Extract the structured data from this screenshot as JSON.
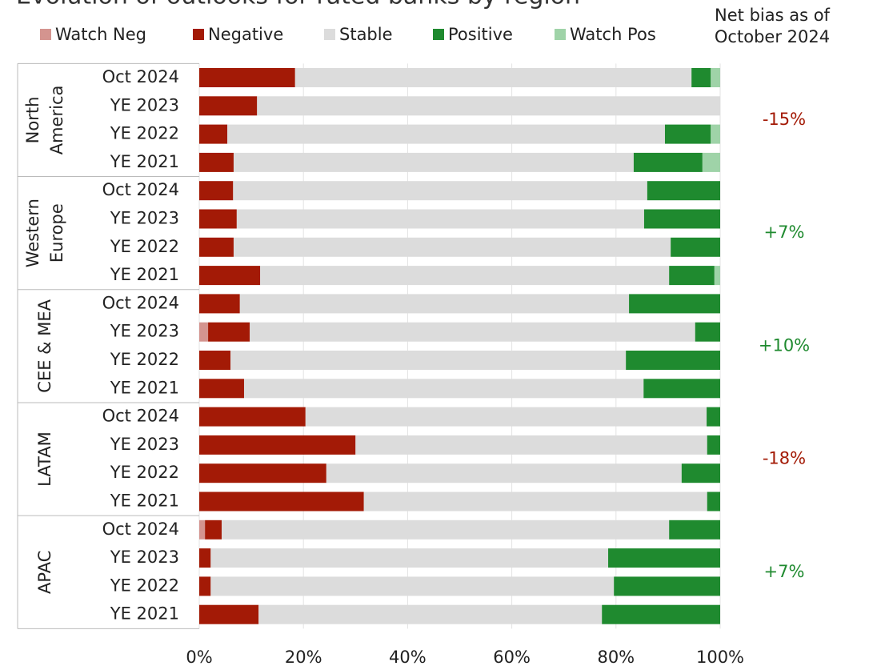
{
  "chart_data": {
    "type": "stacked-bar-horizontal",
    "title": "Evolution of outlooks for rated banks by region",
    "side_header_lines": [
      "Net bias as of",
      "October 2024"
    ],
    "groups": [
      {
        "name_lines": [
          "North",
          "America"
        ],
        "categories": [
          "Oct 2024",
          "YE 2023",
          "YE 2022",
          "YE 2021"
        ],
        "net_bias": {
          "value": -15,
          "label": "-15%"
        }
      },
      {
        "name_lines": [
          "Western",
          "Europe"
        ],
        "categories": [
          "Oct 2024",
          "YE 2023",
          "YE 2022",
          "YE 2021"
        ],
        "net_bias": {
          "value": 7,
          "label": "+7%"
        }
      },
      {
        "name_lines": [
          "CEE & MEA"
        ],
        "categories": [
          "Oct 2024",
          "YE 2023",
          "YE 2022",
          "YE 2021"
        ],
        "net_bias": {
          "value": 10,
          "label": "+10%"
        }
      },
      {
        "name_lines": [
          "LATAM"
        ],
        "categories": [
          "Oct 2024",
          "YE 2023",
          "YE 2022",
          "YE 2021"
        ],
        "net_bias": {
          "value": -18,
          "label": "-18%"
        }
      },
      {
        "name_lines": [
          "APAC"
        ],
        "categories": [
          "Oct 2024",
          "YE 2023",
          "YE 2022",
          "YE 2021"
        ],
        "net_bias": {
          "value": 7,
          "label": "+7%"
        }
      }
    ],
    "series": [
      {
        "name": "Watch Neg",
        "color": "#d4948f",
        "values": [
          0,
          0,
          0,
          0,
          0,
          0,
          0,
          0,
          0,
          1.7,
          0,
          0,
          0,
          0,
          0,
          0,
          1.1,
          0,
          0,
          0
        ]
      },
      {
        "name": "Negative",
        "color": "#a31a06",
        "values": [
          18.4,
          11.1,
          5.4,
          6.6,
          6.5,
          7.2,
          6.6,
          11.7,
          7.8,
          8.0,
          6.0,
          8.6,
          20.4,
          30.0,
          24.4,
          31.6,
          3.2,
          2.2,
          2.2,
          11.4
        ]
      },
      {
        "name": "Stable",
        "color": "#dcdcdc",
        "values": [
          76.1,
          88.9,
          84.0,
          76.8,
          79.5,
          78.2,
          83.9,
          78.5,
          74.7,
          85.5,
          75.9,
          76.7,
          77.0,
          67.5,
          68.2,
          65.9,
          85.9,
          76.3,
          77.4,
          65.9
        ]
      },
      {
        "name": "Positive",
        "color": "#1f8a2f",
        "values": [
          3.7,
          0,
          8.8,
          13.2,
          14.0,
          14.6,
          9.5,
          8.7,
          17.5,
          4.8,
          18.1,
          14.7,
          2.6,
          2.5,
          7.4,
          2.5,
          9.8,
          21.5,
          20.4,
          22.7
        ]
      },
      {
        "name": "Watch Pos",
        "color": "#9fd3a8",
        "values": [
          1.8,
          0,
          1.8,
          3.4,
          0,
          0,
          0,
          1.1,
          0,
          0,
          0,
          0,
          0,
          0,
          0,
          0,
          0,
          0,
          0,
          0
        ]
      }
    ],
    "xlim": [
      0,
      100
    ],
    "xticks": [
      {
        "value": 0,
        "label": "0%"
      },
      {
        "value": 20,
        "label": "20%"
      },
      {
        "value": 40,
        "label": "40%"
      },
      {
        "value": 60,
        "label": "60%"
      },
      {
        "value": 80,
        "label": "80%"
      },
      {
        "value": 100,
        "label": "100%"
      }
    ],
    "grid": true,
    "positive_color": "#1f8a2f",
    "negative_color": "#a31a06"
  }
}
